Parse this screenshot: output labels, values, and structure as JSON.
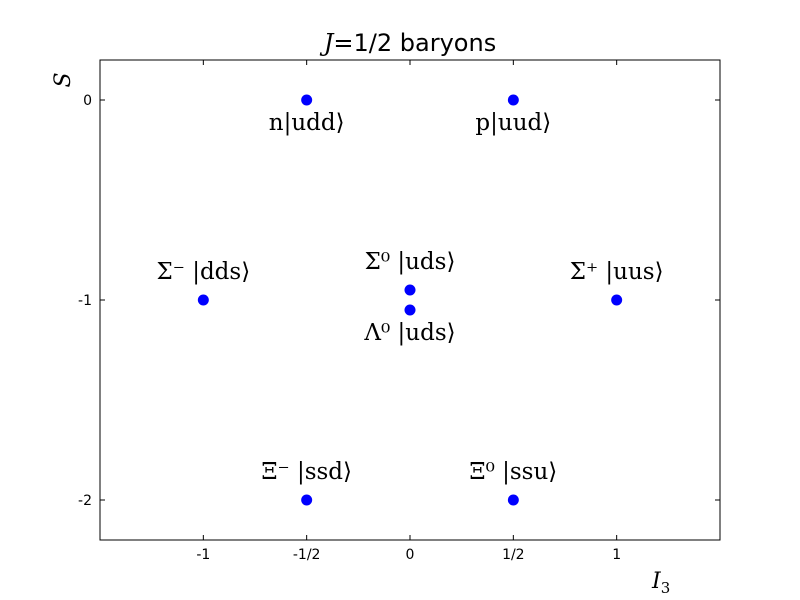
{
  "chart_data": {
    "type": "scatter",
    "title": "J=1/2 baryons",
    "title_parts": {
      "var": "J",
      "rest": "=1/2 baryons"
    },
    "xlabel": "I3",
    "xlabel_parts": {
      "base": "I",
      "sub": "3"
    },
    "ylabel": "S",
    "xlim": [
      -1.5,
      1.5
    ],
    "ylim": [
      -2.2,
      0.2
    ],
    "xticks": [
      {
        "value": -1,
        "label": "-1"
      },
      {
        "value": -0.5,
        "label": "-1/2"
      },
      {
        "value": 0,
        "label": "0"
      },
      {
        "value": 0.5,
        "label": "1/2"
      },
      {
        "value": 1,
        "label": "1"
      }
    ],
    "yticks": [
      {
        "value": 0,
        "label": "0"
      },
      {
        "value": -1,
        "label": "-1"
      },
      {
        "value": -2,
        "label": "-2"
      }
    ],
    "grid": false,
    "marker_color": "#0000ff",
    "points": [
      {
        "x": -0.5,
        "y": 0,
        "label": "n|udd⟩",
        "label_pos": "below"
      },
      {
        "x": 0.5,
        "y": 0,
        "label": "p|uud⟩",
        "label_pos": "below"
      },
      {
        "x": -1,
        "y": -1,
        "label": "Σ⁻ |dds⟩",
        "label_pos": "above"
      },
      {
        "x": 0,
        "y": -0.95,
        "label": "Σ⁰ |uds⟩",
        "label_pos": "above"
      },
      {
        "x": 0,
        "y": -1.05,
        "label": "Λ⁰ |uds⟩",
        "label_pos": "below"
      },
      {
        "x": 1,
        "y": -1,
        "label": "Σ⁺ |uus⟩",
        "label_pos": "above"
      },
      {
        "x": -0.5,
        "y": -2,
        "label": "Ξ⁻ |ssd⟩",
        "label_pos": "above"
      },
      {
        "x": 0.5,
        "y": -2,
        "label": "Ξ⁰ |ssu⟩",
        "label_pos": "above"
      }
    ]
  }
}
